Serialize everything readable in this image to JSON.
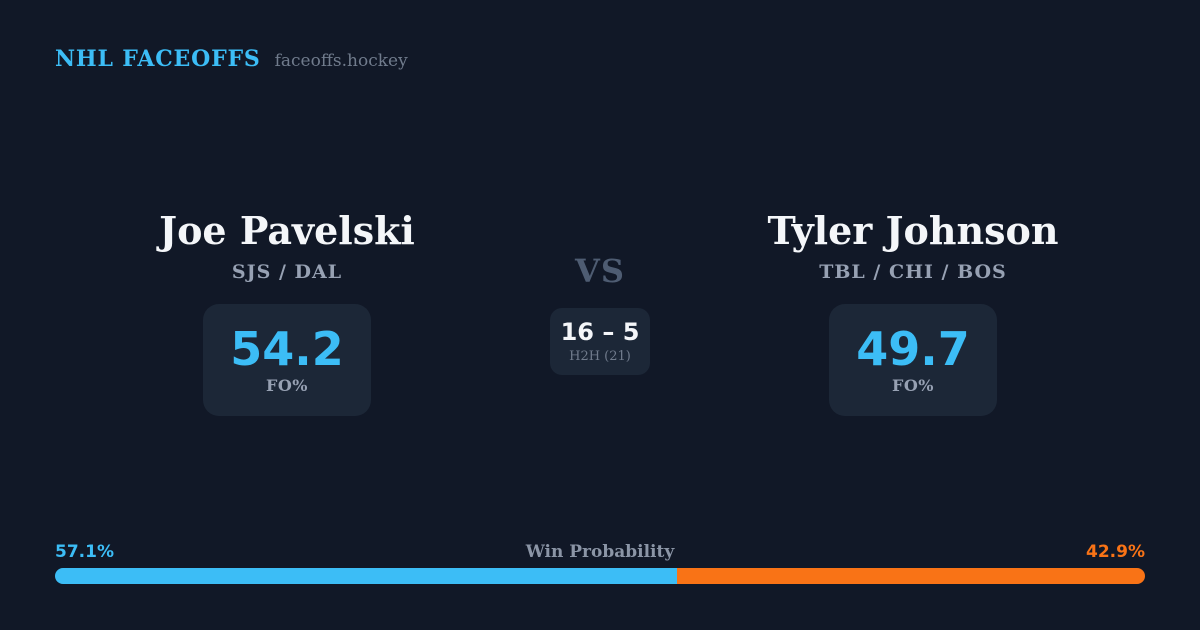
{
  "header": {
    "brand": "NHL FACEOFFS",
    "site": "faceoffs.hockey"
  },
  "matchup": {
    "vs": "VS",
    "h2h_score": "16 – 5",
    "h2h_label": "H2H (21)",
    "left": {
      "name": "Joe Pavelski",
      "teams": "SJS / DAL",
      "fo_value": "54.2",
      "fo_label": "FO%"
    },
    "right": {
      "name": "Tyler Johnson",
      "teams": "TBL / CHI / BOS",
      "fo_value": "49.7",
      "fo_label": "FO%"
    }
  },
  "win_probability": {
    "title": "Win Probability",
    "left_label": "57.1%",
    "right_label": "42.9%",
    "left_pct": 57.1,
    "right_pct": 42.9
  },
  "colors": {
    "bg": "#111827",
    "card": "#1c2737",
    "accent_blue": "#3cbdf6",
    "accent_orange": "#f97316",
    "text_primary": "#f4f6f9",
    "text_secondary": "#97a1b3",
    "text_muted": "#707b8c",
    "text_label": "#8b95a6",
    "vs_color": "#4e5c72"
  },
  "chart_data": {
    "type": "bar",
    "title": "Win Probability",
    "categories": [
      "Joe Pavelski",
      "Tyler Johnson"
    ],
    "series": [
      {
        "name": "Win Probability %",
        "values": [
          57.1,
          42.9
        ]
      },
      {
        "name": "Faceoff %",
        "values": [
          54.2,
          49.7
        ]
      },
      {
        "name": "Head-to-head wins (21 faceoffs)",
        "values": [
          16,
          5
        ]
      }
    ],
    "colors": [
      "#3cbdf6",
      "#f97316"
    ],
    "legend_position": "none",
    "grid": false,
    "xlim": [
      0,
      100
    ]
  }
}
